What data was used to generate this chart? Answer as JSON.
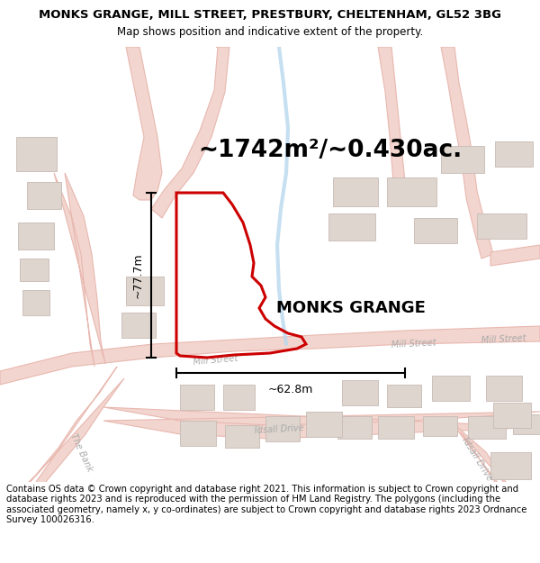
{
  "title": "MONKS GRANGE, MILL STREET, PRESTBURY, CHELTENHAM, GL52 3BG",
  "subtitle": "Map shows position and indicative extent of the property.",
  "area_text": "~1742m²/~0.430ac.",
  "width_label": "~62.8m",
  "height_label": "~77.7m",
  "property_name": "MONKS GRANGE",
  "footer": "Contains OS data © Crown copyright and database right 2021. This information is subject to Crown copyright and database rights 2023 and is reproduced with the permission of HM Land Registry. The polygons (including the associated geometry, namely x, y co-ordinates) are subject to Crown copyright and database rights 2023 Ordnance Survey 100026316.",
  "map_bg": "#f7f3f1",
  "road_fill": "#f2d5ce",
  "road_edge": "#e8b8b0",
  "building_fill": "#ddd5ce",
  "building_edge": "#c8bab4",
  "highlight_color": "#cc0000",
  "water_color": "#b8d8ee",
  "road_label_color": "#aaaaaa",
  "title_fontsize": 9.5,
  "subtitle_fontsize": 8.5,
  "area_fontsize": 19,
  "label_fontsize": 9,
  "footer_fontsize": 7.2,
  "property_label_fontsize": 13
}
